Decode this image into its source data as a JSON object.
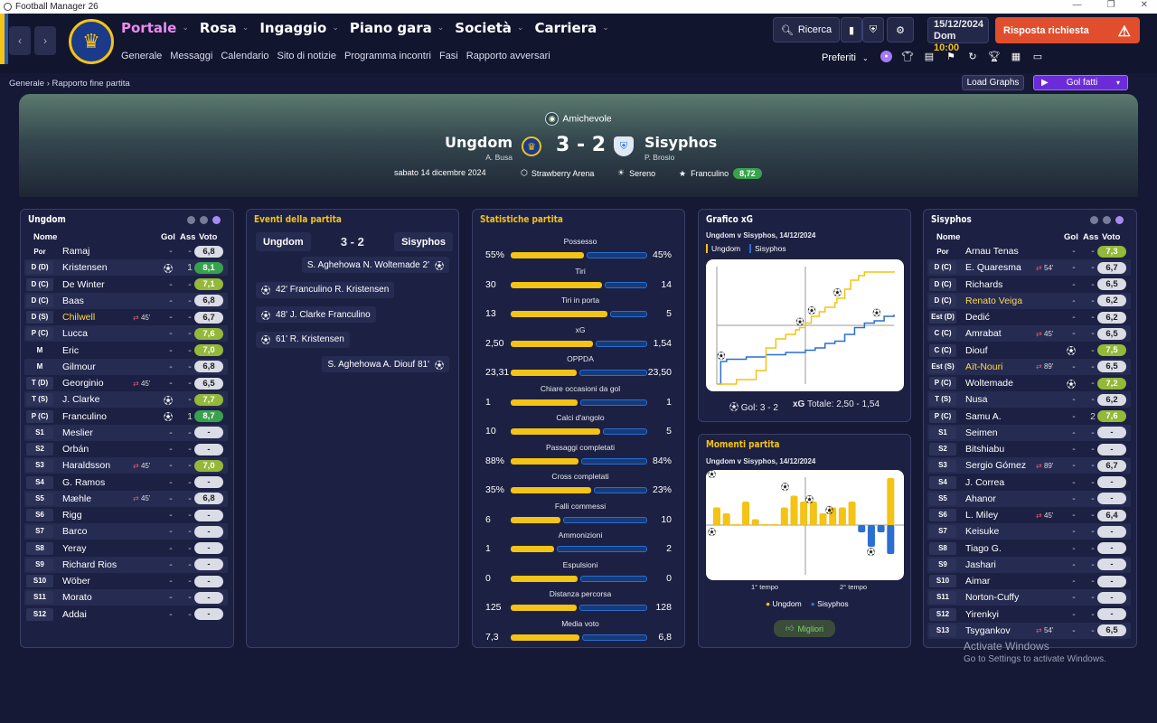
{
  "app": {
    "title": "Football Manager 26"
  },
  "nav": {
    "main": [
      {
        "label": "Portale"
      },
      {
        "label": "Rosa"
      },
      {
        "label": "Ingaggio"
      },
      {
        "label": "Piano gara"
      },
      {
        "label": "Società"
      },
      {
        "label": "Carriera"
      }
    ],
    "sub": [
      "Generale",
      "Messaggi",
      "Calendario",
      "Sito di notizie",
      "Programma incontri",
      "Fasi",
      "Rapporto avversari"
    ]
  },
  "toolbar": {
    "search_label": "Ricerca",
    "date": "15/12/2024",
    "day": "Dom",
    "time": "10:00",
    "alert_label": "Risposta richiesta",
    "favorites_label": "Preferiti"
  },
  "breadcrumb": {
    "root": "Generale",
    "current": "Rapporto fine partita"
  },
  "actions": {
    "load_graphs": "Load Graphs",
    "view_select": "Gol fatti"
  },
  "match": {
    "competition": "Amichevole",
    "home": "Ungdom",
    "away": "Sisyphos",
    "home_manager": "A. Busa",
    "away_manager": "P. Brosio",
    "score": "3 - 2",
    "date": "sabato 14 dicembre 2024",
    "stadium": "Strawberry Arena",
    "weather": "Sereno",
    "pom": "Franculino",
    "pom_rating": "8,72"
  },
  "lineup_headers": {
    "name": "Nome",
    "goals": "Gol",
    "assists": "Ass",
    "rating": "Voto"
  },
  "home_panel_title": "Ungdom",
  "away_panel_title": "Sisyphos",
  "home_players": [
    {
      "pos": "Por",
      "name": "Ramaj",
      "g": "-",
      "a": "-",
      "r": "6,8"
    },
    {
      "pos": "D (D)",
      "name": "Kristensen",
      "goal": true,
      "g": "",
      "a": "1",
      "r": "8,1"
    },
    {
      "pos": "D (C)",
      "name": "De Winter",
      "g": "-",
      "a": "-",
      "r": "7,1"
    },
    {
      "pos": "D (C)",
      "name": "Baas",
      "g": "-",
      "a": "-",
      "r": "6,8"
    },
    {
      "pos": "D (S)",
      "name": "Chilwell",
      "hl": true,
      "sub": "45'",
      "g": "-",
      "a": "-",
      "r": "6,7"
    },
    {
      "pos": "P (C)",
      "name": "Lucca",
      "g": "-",
      "a": "-",
      "r": "7,6"
    },
    {
      "pos": "M",
      "name": "Eric",
      "g": "-",
      "a": "-",
      "r": "7,0"
    },
    {
      "pos": "M",
      "name": "Gilmour",
      "g": "-",
      "a": "-",
      "r": "6,8"
    },
    {
      "pos": "T (D)",
      "name": "Georginio",
      "sub": "45'",
      "g": "-",
      "a": "-",
      "r": "6,5"
    },
    {
      "pos": "T (S)",
      "name": "J. Clarke",
      "goal": true,
      "g": "",
      "a": "-",
      "r": "7,7"
    },
    {
      "pos": "P (C)",
      "name": "Franculino",
      "goal": true,
      "g": "",
      "a": "1",
      "r": "8,7"
    },
    {
      "pos": "S1",
      "name": "Meslier",
      "g": "-",
      "a": "-",
      "r": "-"
    },
    {
      "pos": "S2",
      "name": "Orbán",
      "g": "-",
      "a": "-",
      "r": "-"
    },
    {
      "pos": "S3",
      "name": "Haraldsson",
      "sub": "45'",
      "g": "-",
      "a": "-",
      "r": "7,0"
    },
    {
      "pos": "S4",
      "name": "G. Ramos",
      "g": "-",
      "a": "-",
      "r": "-"
    },
    {
      "pos": "S5",
      "name": "Mæhle",
      "sub": "45'",
      "g": "-",
      "a": "-",
      "r": "6,8"
    },
    {
      "pos": "S6",
      "name": "Rigg",
      "g": "-",
      "a": "-",
      "r": "-"
    },
    {
      "pos": "S7",
      "name": "Barco",
      "g": "-",
      "a": "-",
      "r": "-"
    },
    {
      "pos": "S8",
      "name": "Yeray",
      "g": "-",
      "a": "-",
      "r": "-"
    },
    {
      "pos": "S9",
      "name": "Richard Rios",
      "g": "-",
      "a": "-",
      "r": "-"
    },
    {
      "pos": "S10",
      "name": "Wöber",
      "g": "-",
      "a": "-",
      "r": "-"
    },
    {
      "pos": "S11",
      "name": "Morato",
      "g": "-",
      "a": "-",
      "r": "-"
    },
    {
      "pos": "S12",
      "name": "Addai",
      "g": "-",
      "a": "-",
      "r": "-"
    }
  ],
  "away_players": [
    {
      "pos": "Por",
      "name": "Arnau Tenas",
      "g": "-",
      "a": "-",
      "r": "7,3"
    },
    {
      "pos": "D (C)",
      "name": "E. Quaresma",
      "sub": "54'",
      "g": "-",
      "a": "-",
      "r": "6,7"
    },
    {
      "pos": "D (C)",
      "name": "Richards",
      "g": "-",
      "a": "-",
      "r": "6,5"
    },
    {
      "pos": "D (C)",
      "name": "Renato Veiga",
      "hl": true,
      "g": "-",
      "a": "-",
      "r": "6,2"
    },
    {
      "pos": "Est (D)",
      "name": "Dedić",
      "g": "-",
      "a": "-",
      "r": "6,2"
    },
    {
      "pos": "C (C)",
      "name": "Amrabat",
      "sub": "45'",
      "g": "-",
      "a": "-",
      "r": "6,5"
    },
    {
      "pos": "C (C)",
      "name": "Diouf",
      "goal": true,
      "g": "",
      "a": "-",
      "r": "7,5"
    },
    {
      "pos": "Est (S)",
      "name": "Aït-Nouri",
      "hl": true,
      "sub": "89'",
      "g": "-",
      "a": "-",
      "r": "6,5"
    },
    {
      "pos": "P (C)",
      "name": "Woltemade",
      "goal": true,
      "g": "",
      "a": "-",
      "r": "7,2"
    },
    {
      "pos": "T (S)",
      "name": "Nusa",
      "g": "-",
      "a": "-",
      "r": "6,2"
    },
    {
      "pos": "P (C)",
      "name": "Samu A.",
      "g": "-",
      "a": "2",
      "r": "7,6"
    },
    {
      "pos": "S1",
      "name": "Seimen",
      "g": "-",
      "a": "-",
      "r": "-"
    },
    {
      "pos": "S2",
      "name": "Bitshiabu",
      "g": "-",
      "a": "-",
      "r": "-"
    },
    {
      "pos": "S3",
      "name": "Sergio Gómez",
      "sub": "89'",
      "g": "-",
      "a": "-",
      "r": "6,7"
    },
    {
      "pos": "S4",
      "name": "J. Correa",
      "g": "-",
      "a": "-",
      "r": "-"
    },
    {
      "pos": "S5",
      "name": "Ahanor",
      "g": "-",
      "a": "-",
      "r": "-"
    },
    {
      "pos": "S6",
      "name": "L. Miley",
      "sub": "45'",
      "g": "-",
      "a": "-",
      "r": "6,4"
    },
    {
      "pos": "S7",
      "name": "Keisuke",
      "g": "-",
      "a": "-",
      "r": "-"
    },
    {
      "pos": "S8",
      "name": "Tiago G.",
      "g": "-",
      "a": "-",
      "r": "-"
    },
    {
      "pos": "S9",
      "name": "Jashari",
      "g": "-",
      "a": "-",
      "r": "-"
    },
    {
      "pos": "S10",
      "name": "Aimar",
      "g": "-",
      "a": "-",
      "r": "-"
    },
    {
      "pos": "S11",
      "name": "Norton-Cuffy",
      "g": "-",
      "a": "-",
      "r": "-"
    },
    {
      "pos": "S12",
      "name": "Yirenkyi",
      "g": "-",
      "a": "-",
      "r": "-"
    },
    {
      "pos": "S13",
      "name": "Tsygankov",
      "sub": "54'",
      "g": "-",
      "a": "-",
      "r": "6,5"
    }
  ],
  "events": {
    "title": "Eventi della partita",
    "home": "Ungdom",
    "away": "Sisyphos",
    "score": "3 - 2",
    "items": [
      {
        "side": "away",
        "text": "S. Aghehowa  N. Woltemade 2'"
      },
      {
        "side": "home",
        "text": "42'  Franculino  R. Kristensen"
      },
      {
        "side": "home",
        "text": "48'  J. Clarke  Franculino"
      },
      {
        "side": "home",
        "text": "61'  R. Kristensen"
      },
      {
        "side": "away",
        "text": "S. Aghehowa  A. Diouf 81'"
      }
    ]
  },
  "stats": {
    "title": "Statistiche partita",
    "items": [
      {
        "label": "Possesso",
        "h": "55%",
        "a": "45%",
        "hv": 55,
        "av": 45
      },
      {
        "label": "Tiri",
        "h": "30",
        "a": "14",
        "hv": 30,
        "av": 14
      },
      {
        "label": "Tiri in porta",
        "h": "13",
        "a": "5",
        "hv": 13,
        "av": 5
      },
      {
        "label": "xG",
        "h": "2,50",
        "a": "1,54",
        "hv": 2.5,
        "av": 1.54
      },
      {
        "label": "OPPDA",
        "h": "23,31",
        "a": "23,50",
        "hv": 23.31,
        "av": 23.5
      },
      {
        "label": "Chiare occasioni da gol",
        "h": "1",
        "a": "1",
        "hv": 1,
        "av": 1
      },
      {
        "label": "Calci d'angolo",
        "h": "10",
        "a": "5",
        "hv": 10,
        "av": 5
      },
      {
        "label": "Passaggi completati",
        "h": "88%",
        "a": "84%",
        "hv": 88,
        "av": 84
      },
      {
        "label": "Cross completati",
        "h": "35%",
        "a": "23%",
        "hv": 35,
        "av": 23
      },
      {
        "label": "Falli commessi",
        "h": "6",
        "a": "10",
        "hv": 6,
        "av": 10
      },
      {
        "label": "Ammonizioni",
        "h": "1",
        "a": "2",
        "hv": 1,
        "av": 2
      },
      {
        "label": "Espulsioni",
        "h": "0",
        "a": "0",
        "hv": 0,
        "av": 0
      },
      {
        "label": "Distanza percorsa",
        "h": "125",
        "a": "128",
        "hv": 125,
        "av": 128
      },
      {
        "label": "Media voto",
        "h": "7,3",
        "a": "6,8",
        "hv": 7.3,
        "av": 6.8
      }
    ]
  },
  "xg": {
    "title": "Grafico xG",
    "subtitle": "Ungdom v Sisyphos, 14/12/2024",
    "legend_home": "Ungdom",
    "legend_away": "Sisyphos",
    "goals_text": "Gol: 3 - 2",
    "xg_label": "xG",
    "xg_text": "Totale: 2,50 - 1,54",
    "home": [
      [
        0,
        0
      ],
      [
        10,
        0.1
      ],
      [
        20,
        0.3
      ],
      [
        25,
        0.8
      ],
      [
        30,
        1.0
      ],
      [
        35,
        1.1
      ],
      [
        40,
        1.2
      ],
      [
        42,
        1.25
      ],
      [
        45,
        1.35
      ],
      [
        48,
        1.5
      ],
      [
        52,
        1.6
      ],
      [
        55,
        1.7
      ],
      [
        60,
        1.8
      ],
      [
        61,
        1.9
      ],
      [
        65,
        2.1
      ],
      [
        68,
        2.3
      ],
      [
        72,
        2.4
      ],
      [
        75,
        2.48
      ],
      [
        90,
        2.5
      ]
    ],
    "away": [
      [
        0,
        0
      ],
      [
        2,
        0.5
      ],
      [
        5,
        0.55
      ],
      [
        15,
        0.6
      ],
      [
        25,
        0.65
      ],
      [
        35,
        0.7
      ],
      [
        45,
        0.75
      ],
      [
        50,
        0.8
      ],
      [
        55,
        0.9
      ],
      [
        60,
        0.95
      ],
      [
        65,
        1.1
      ],
      [
        70,
        1.25
      ],
      [
        75,
        1.35
      ],
      [
        80,
        1.4
      ],
      [
        85,
        1.5
      ],
      [
        90,
        1.54
      ]
    ],
    "home_goals": [
      [
        42,
        1.25
      ],
      [
        48,
        1.5
      ],
      [
        61,
        1.9
      ]
    ],
    "away_goals": [
      [
        2,
        0.5
      ],
      [
        81,
        1.45
      ]
    ]
  },
  "moments": {
    "title": "Momenti partita",
    "subtitle": "Ungdom v Sisyphos, 14/12/2024",
    "half1": "1° tempo",
    "half2": "2° tempo",
    "legend_home": "Ungdom",
    "legend_away": "Sisyphos",
    "best_label": "Migliori",
    "home": [
      3,
      2,
      0,
      4,
      1,
      0,
      0,
      3,
      5,
      4,
      4,
      2,
      3,
      3,
      4,
      0,
      0,
      0,
      8
    ],
    "away": [
      0,
      0,
      0,
      0,
      0,
      0,
      0,
      0,
      0,
      0,
      0,
      0,
      0,
      0,
      0,
      1,
      3,
      1,
      4
    ]
  },
  "watermark": {
    "title": "Activate Windows",
    "sub": "Go to Settings to activate Windows."
  },
  "colors": {
    "home": "#f3c316",
    "away": "#2a6fd1",
    "accent": "#a88af2",
    "alert": "#e04e2e"
  }
}
